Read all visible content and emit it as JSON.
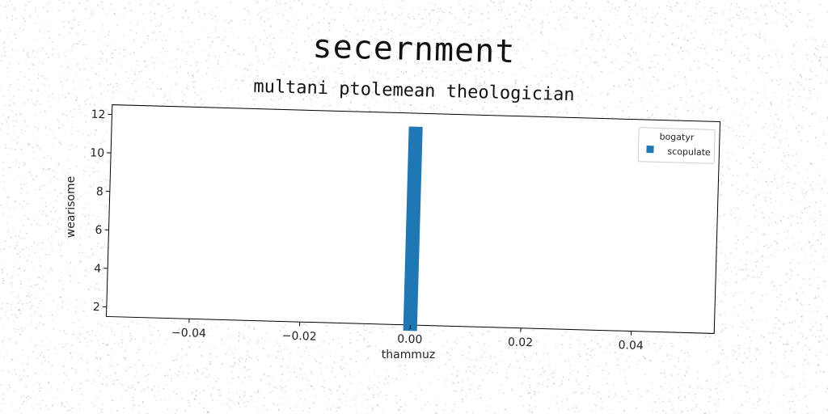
{
  "chart_data": {
    "type": "bar",
    "title": "secernment",
    "subtitle": "multani ptolemean theologician",
    "xlabel": "thammuz",
    "ylabel": "wearisome",
    "xlim": [
      -0.055,
      0.055
    ],
    "ylim": [
      1.5,
      12.5
    ],
    "xticks": [
      -0.04,
      -0.02,
      0.0,
      0.02,
      0.04
    ],
    "xtick_labels": [
      "−0.04",
      "−0.02",
      "0.00",
      "0.02",
      "0.04"
    ],
    "yticks": [
      2,
      4,
      6,
      8,
      10,
      12
    ],
    "ytick_labels": [
      "2",
      "4",
      "6",
      "8",
      "10",
      "12"
    ],
    "legend": {
      "title": "bogatyr",
      "placement": "top-right",
      "entries": [
        "scopulate"
      ]
    },
    "series": [
      {
        "name": "scopulate",
        "color": "#1f77b4",
        "x": 0.0,
        "width": 0.0025,
        "bottom": 1.2,
        "top": 11.8
      }
    ],
    "grid": false
  }
}
